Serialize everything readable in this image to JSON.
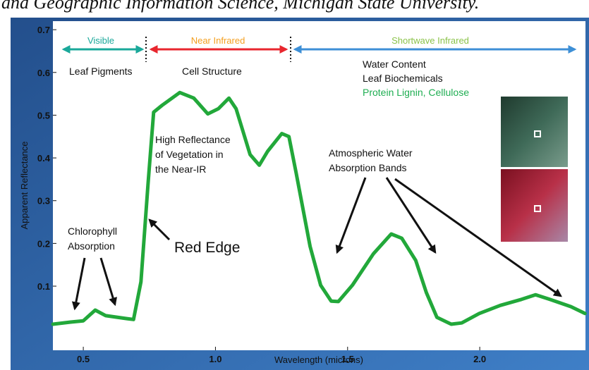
{
  "caption": "and Geographic Information Science, Michigan State University.",
  "chart_data": {
    "type": "line",
    "x_label": "Wavelength (microns)",
    "y_label": "Apparent Reflectance",
    "x": [
      0.385,
      0.452,
      0.5,
      0.545,
      0.585,
      0.665,
      0.69,
      0.718,
      0.745,
      0.766,
      0.798,
      0.865,
      0.918,
      0.971,
      1.011,
      1.051,
      1.078,
      1.131,
      1.166,
      1.198,
      1.251,
      1.278,
      1.305,
      1.358,
      1.398,
      1.438,
      1.465,
      1.518,
      1.598,
      1.665,
      1.705,
      1.758,
      1.798,
      1.838,
      1.892,
      1.932,
      1.998,
      2.078,
      2.158,
      2.211,
      2.265,
      2.345,
      2.398
    ],
    "values": [
      0.011,
      0.016,
      0.019,
      0.044,
      0.031,
      0.024,
      0.022,
      0.11,
      0.34,
      0.507,
      0.523,
      0.553,
      0.54,
      0.503,
      0.515,
      0.54,
      0.515,
      0.408,
      0.383,
      0.416,
      0.457,
      0.45,
      0.366,
      0.193,
      0.102,
      0.065,
      0.064,
      0.102,
      0.176,
      0.222,
      0.212,
      0.16,
      0.085,
      0.027,
      0.011,
      0.014,
      0.036,
      0.055,
      0.069,
      0.08,
      0.069,
      0.052,
      0.036
    ],
    "color": "#22a83a",
    "xlim": [
      0.385,
      2.4
    ],
    "ylim": [
      -0.05,
      0.72
    ],
    "xticks": [
      0.5,
      {
        "value": 1,
        "label": "1.0"
      },
      1.5,
      {
        "value": 2,
        "label": "2.0"
      }
    ],
    "yticks": [
      0.1,
      0.2,
      0.3,
      0.4,
      0.5,
      0.6,
      0.7
    ],
    "regions": [
      {
        "name": "Visible",
        "color": "#1aa89a",
        "arrow_color": "#1aa89a"
      },
      {
        "name": "Near Infrared",
        "color": "#f4a020",
        "arrow_color": "#e8262e"
      },
      {
        "name": "Shortwave Infrared",
        "color": "#8bc34a",
        "arrow_color": "#3d8fd6"
      }
    ],
    "annotations": {
      "leaf_pigments": "Leaf Pigments",
      "cell_structure": "Cell Structure",
      "water_content": "Water Content",
      "leaf_biochemicals": "Leaf Biochemicals",
      "protein": "Protein Lignin, Cellulose",
      "high_reflectance": [
        "High Reflectance",
        "of Vegetation in",
        "the Near-IR"
      ],
      "atmospheric": [
        "Atmospheric Water",
        "Absorption Bands"
      ],
      "chlorophyll": [
        "Chlorophyll",
        "Absorption"
      ],
      "red_edge": "Red Edge"
    }
  }
}
